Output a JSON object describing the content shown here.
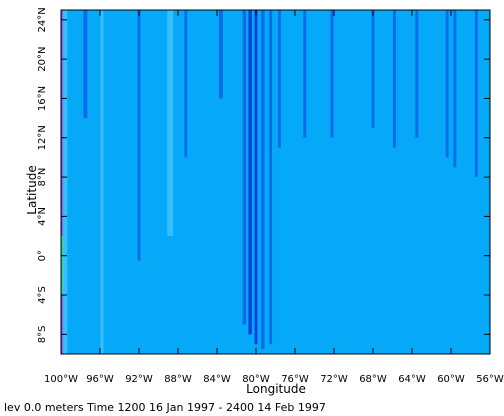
{
  "chart_data": {
    "type": "heatmap",
    "xlabel": "Longitude",
    "ylabel": "Latitude",
    "xlim": [
      100,
      56
    ],
    "ylim": [
      -10,
      25
    ],
    "x_ticks": [
      {
        "value": 100,
        "label": "100°W"
      },
      {
        "value": 96,
        "label": "96°W"
      },
      {
        "value": 92,
        "label": "92°W"
      },
      {
        "value": 88,
        "label": "88°W"
      },
      {
        "value": 84,
        "label": "84°W"
      },
      {
        "value": 80,
        "label": "80°W"
      },
      {
        "value": 76,
        "label": "76°W"
      },
      {
        "value": 72,
        "label": "72°W"
      },
      {
        "value": 68,
        "label": "68°W"
      },
      {
        "value": 64,
        "label": "64°W"
      },
      {
        "value": 60,
        "label": "60°W"
      },
      {
        "value": 56,
        "label": "56°W"
      }
    ],
    "y_ticks": [
      {
        "value": -8,
        "label": "8°S"
      },
      {
        "value": -4,
        "label": "4°S"
      },
      {
        "value": 0,
        "label": "0°"
      },
      {
        "value": 4,
        "label": "4°N"
      },
      {
        "value": 8,
        "label": "8°N"
      },
      {
        "value": 12,
        "label": "12°N"
      },
      {
        "value": 16,
        "label": "16°N"
      },
      {
        "value": 20,
        "label": "20°N"
      },
      {
        "value": 24,
        "label": "24°N"
      }
    ],
    "colors": {
      "background_field": "#05a9f7",
      "light_streak": "#3fc2ff",
      "dark_streak": "#0a63e6",
      "deep_streak": "#0a2fd8",
      "edge_purple": "#8a3cf0",
      "edge_green": "#2ad27a"
    },
    "streaks": [
      {
        "lon": 99.6,
        "width": 0.5,
        "lat_min": -10,
        "lat_max": 25,
        "tone": "light_streak"
      },
      {
        "lon": 97.5,
        "width": 0.4,
        "lat_min": 14,
        "lat_max": 25,
        "tone": "dark_streak"
      },
      {
        "lon": 95.8,
        "width": 0.3,
        "lat_min": -10,
        "lat_max": 25,
        "tone": "light_streak"
      },
      {
        "lon": 92.0,
        "width": 0.3,
        "lat_min": -0.5,
        "lat_max": 25,
        "tone": "dark_streak"
      },
      {
        "lon": 88.8,
        "width": 0.6,
        "lat_min": 2,
        "lat_max": 25,
        "tone": "light_streak"
      },
      {
        "lon": 87.2,
        "width": 0.3,
        "lat_min": 10,
        "lat_max": 25,
        "tone": "dark_streak"
      },
      {
        "lon": 83.6,
        "width": 0.4,
        "lat_min": 16,
        "lat_max": 25,
        "tone": "dark_streak"
      },
      {
        "lon": 81.2,
        "width": 0.35,
        "lat_min": -7,
        "lat_max": 25,
        "tone": "dark_streak"
      },
      {
        "lon": 80.6,
        "width": 0.35,
        "lat_min": -8,
        "lat_max": 25,
        "tone": "deep_streak"
      },
      {
        "lon": 80.0,
        "width": 0.3,
        "lat_min": -9,
        "lat_max": 25,
        "tone": "deep_streak"
      },
      {
        "lon": 79.3,
        "width": 0.35,
        "lat_min": -9.5,
        "lat_max": 25,
        "tone": "dark_streak"
      },
      {
        "lon": 78.5,
        "width": 0.3,
        "lat_min": -9,
        "lat_max": 25,
        "tone": "dark_streak"
      },
      {
        "lon": 77.6,
        "width": 0.3,
        "lat_min": 11,
        "lat_max": 25,
        "tone": "dark_streak"
      },
      {
        "lon": 75.0,
        "width": 0.3,
        "lat_min": 12,
        "lat_max": 25,
        "tone": "dark_streak"
      },
      {
        "lon": 72.2,
        "width": 0.3,
        "lat_min": 12,
        "lat_max": 25,
        "tone": "dark_streak"
      },
      {
        "lon": 68.0,
        "width": 0.3,
        "lat_min": 13,
        "lat_max": 25,
        "tone": "dark_streak"
      },
      {
        "lon": 65.8,
        "width": 0.3,
        "lat_min": 11,
        "lat_max": 25,
        "tone": "dark_streak"
      },
      {
        "lon": 63.5,
        "width": 0.3,
        "lat_min": 12,
        "lat_max": 25,
        "tone": "dark_streak"
      },
      {
        "lon": 60.4,
        "width": 0.3,
        "lat_min": 10,
        "lat_max": 25,
        "tone": "dark_streak"
      },
      {
        "lon": 59.6,
        "width": 0.3,
        "lat_min": 9,
        "lat_max": 25,
        "tone": "dark_streak"
      },
      {
        "lon": 57.4,
        "width": 0.3,
        "lat_min": 8,
        "lat_max": 25,
        "tone": "dark_streak"
      }
    ],
    "footer": "lev 0.0 meters Time 1200 16 Jan 1997 - 2400 14 Feb 1997"
  }
}
